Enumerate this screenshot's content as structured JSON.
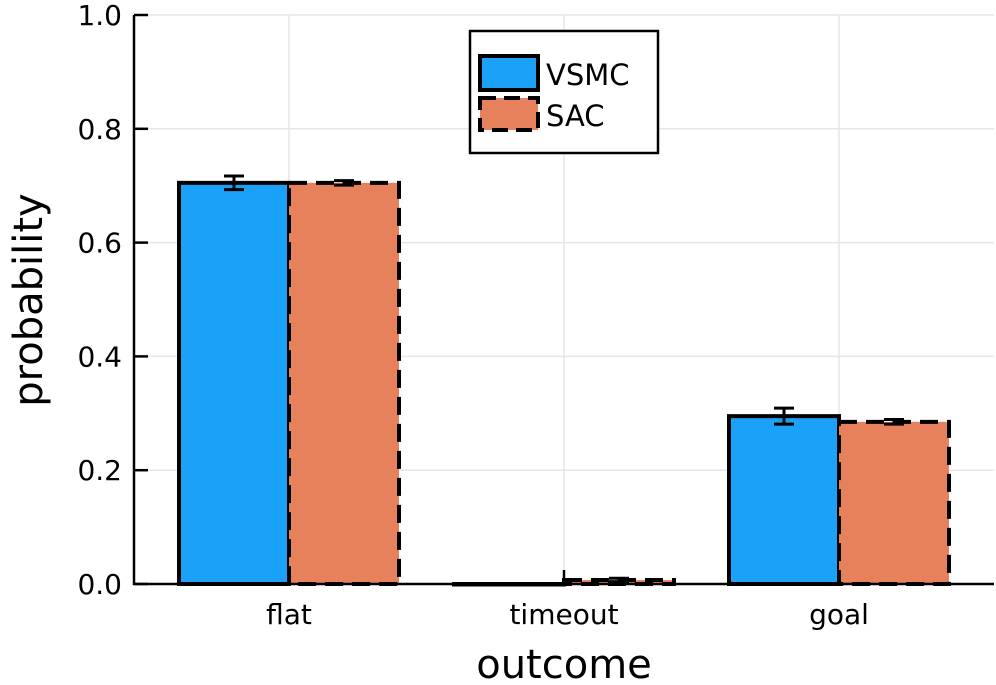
{
  "chart_data": {
    "type": "bar",
    "title": "",
    "xlabel": "outcome",
    "ylabel": "probability",
    "categories": [
      "flat",
      "timeout",
      "goal"
    ],
    "ylim": [
      0.0,
      1.0
    ],
    "yticks": [
      0.0,
      0.2,
      0.4,
      0.6,
      0.8,
      1.0
    ],
    "ytick_labels": [
      "0.0",
      "0.2",
      "0.4",
      "0.6",
      "0.8",
      "1.0"
    ],
    "grid": true,
    "legend_position": "top-center",
    "series": [
      {
        "name": "VSMC",
        "values": [
          0.705,
          0.0,
          0.295
        ],
        "errors": [
          0.012,
          0.0,
          0.014
        ],
        "color": "#1ba1f7",
        "edge_style": "solid"
      },
      {
        "name": "SAC",
        "values": [
          0.705,
          0.007,
          0.285
        ],
        "errors": [
          0.004,
          0.003,
          0.004
        ],
        "color": "#e6815b",
        "edge_style": "dashed"
      }
    ]
  }
}
